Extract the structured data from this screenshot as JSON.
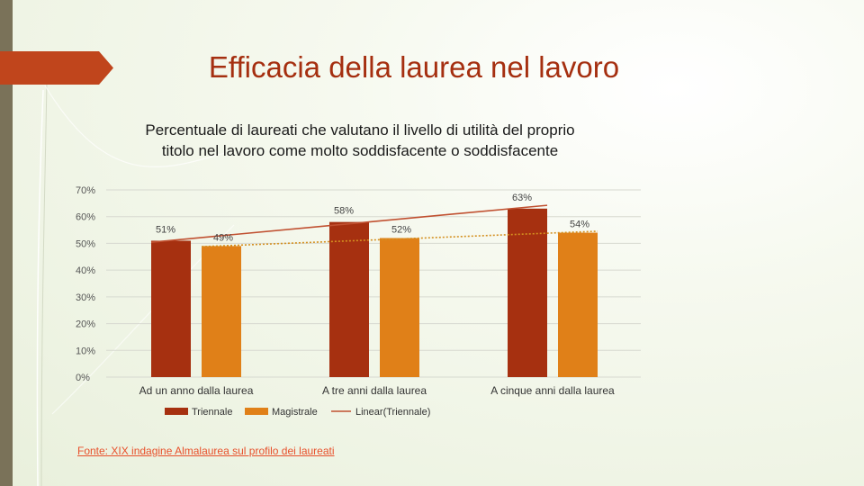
{
  "slide": {
    "title": "Efficacia della laurea nel lavoro",
    "source": "Fonte: XIX indagine Almalaurea sul profilo dei laureati"
  },
  "colors": {
    "triennale": "#a63010",
    "magistrale": "#e08018",
    "trend_triennale": "#c05030",
    "trend_magistrale": "#d49020",
    "title": "#a52f10",
    "left_bar": "#7a7259"
  },
  "chart_data": {
    "type": "bar",
    "title": "Percentuale di laureati che valutano il livello di utilità del proprio titolo nel lavoro come molto soddisfacente o soddisfacente",
    "categories": [
      "Ad un anno dalla laurea",
      "A tre anni dalla laurea",
      "A cinque anni dalla laurea"
    ],
    "series": [
      {
        "name": "Triennale",
        "values": [
          51,
          58,
          63
        ],
        "labels": [
          "51%",
          "58%",
          "63%"
        ]
      },
      {
        "name": "Magistrale",
        "values": [
          49,
          52,
          54
        ],
        "labels": [
          "49%",
          "52%",
          "54%"
        ]
      }
    ],
    "trendlines": [
      {
        "name": "Linear(Triennale)",
        "series": "Triennale",
        "shown_in_legend": true
      },
      {
        "name": "Linear(Magistrale)",
        "series": "Magistrale",
        "shown_in_legend": false
      }
    ],
    "ylim": [
      0,
      70
    ],
    "yticks": [
      "0%",
      "10%",
      "20%",
      "30%",
      "40%",
      "50%",
      "60%",
      "70%"
    ],
    "grid": true,
    "legend": "bottom"
  }
}
